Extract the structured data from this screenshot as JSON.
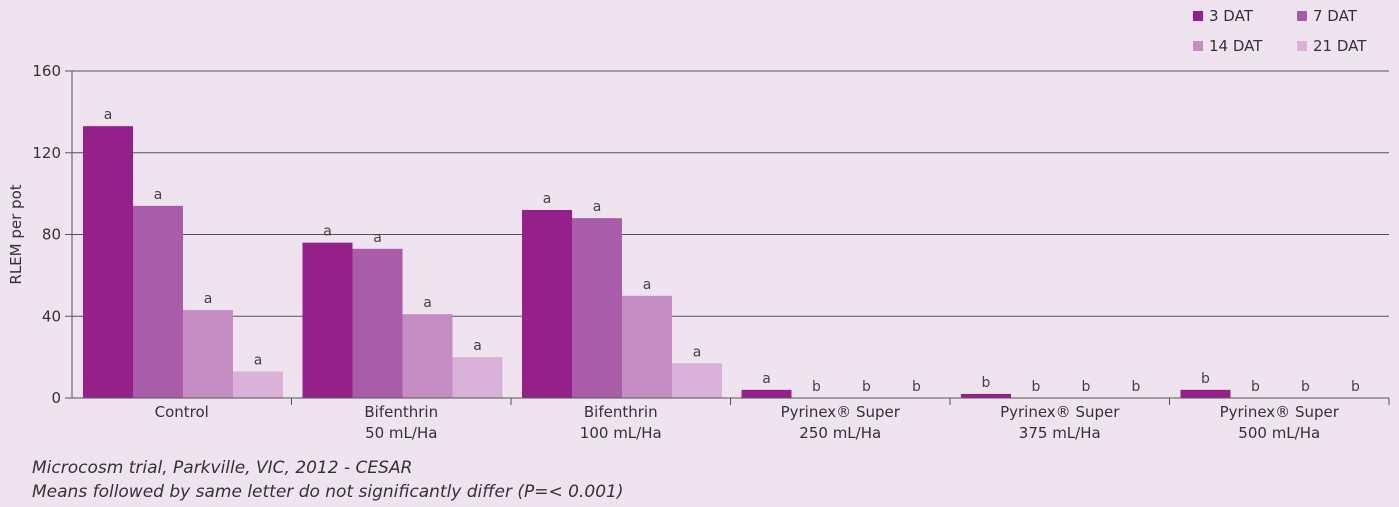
{
  "chart_data": {
    "type": "bar",
    "ylabel": "RLEM per pot",
    "ylim": [
      0,
      160
    ],
    "yticks": [
      0,
      40,
      80,
      120,
      160
    ],
    "grid": true,
    "legend_position": "top-right",
    "categories": [
      [
        "Control"
      ],
      [
        "Bifenthrin",
        "50 mL/Ha"
      ],
      [
        "Bifenthrin",
        "100 mL/Ha"
      ],
      [
        "Pyrinex® Super",
        "250 mL/Ha"
      ],
      [
        "Pyrinex® Super",
        "375 mL/Ha"
      ],
      [
        "Pyrinex® Super",
        "500 mL/Ha"
      ]
    ],
    "series": [
      {
        "name": "3 DAT",
        "color": "#96208a",
        "values": [
          133,
          76,
          92,
          4,
          2,
          4
        ],
        "labels": [
          "a",
          "a",
          "a",
          "a",
          "b",
          "b"
        ]
      },
      {
        "name": "7 DAT",
        "color": "#a95ca8",
        "values": [
          94,
          73,
          88,
          0,
          0,
          0
        ],
        "labels": [
          "a",
          "a",
          "a",
          "b",
          "b",
          "b"
        ]
      },
      {
        "name": "14 DAT",
        "color": "#c48ec5",
        "values": [
          43,
          41,
          50,
          0,
          0,
          0
        ],
        "labels": [
          "a",
          "a",
          "a",
          "b",
          "b",
          "b"
        ]
      },
      {
        "name": "21 DAT",
        "color": "#d9b0d8",
        "values": [
          13,
          20,
          17,
          0,
          0,
          0
        ],
        "labels": [
          "a",
          "a",
          "a",
          "b",
          "b",
          "b"
        ]
      }
    ]
  },
  "notes": {
    "line1": "Microcosm trial, Parkville, VIC, 2012 - CESAR",
    "line2": "Means followed by same letter do not significantly differ (P=< 0.001)"
  }
}
